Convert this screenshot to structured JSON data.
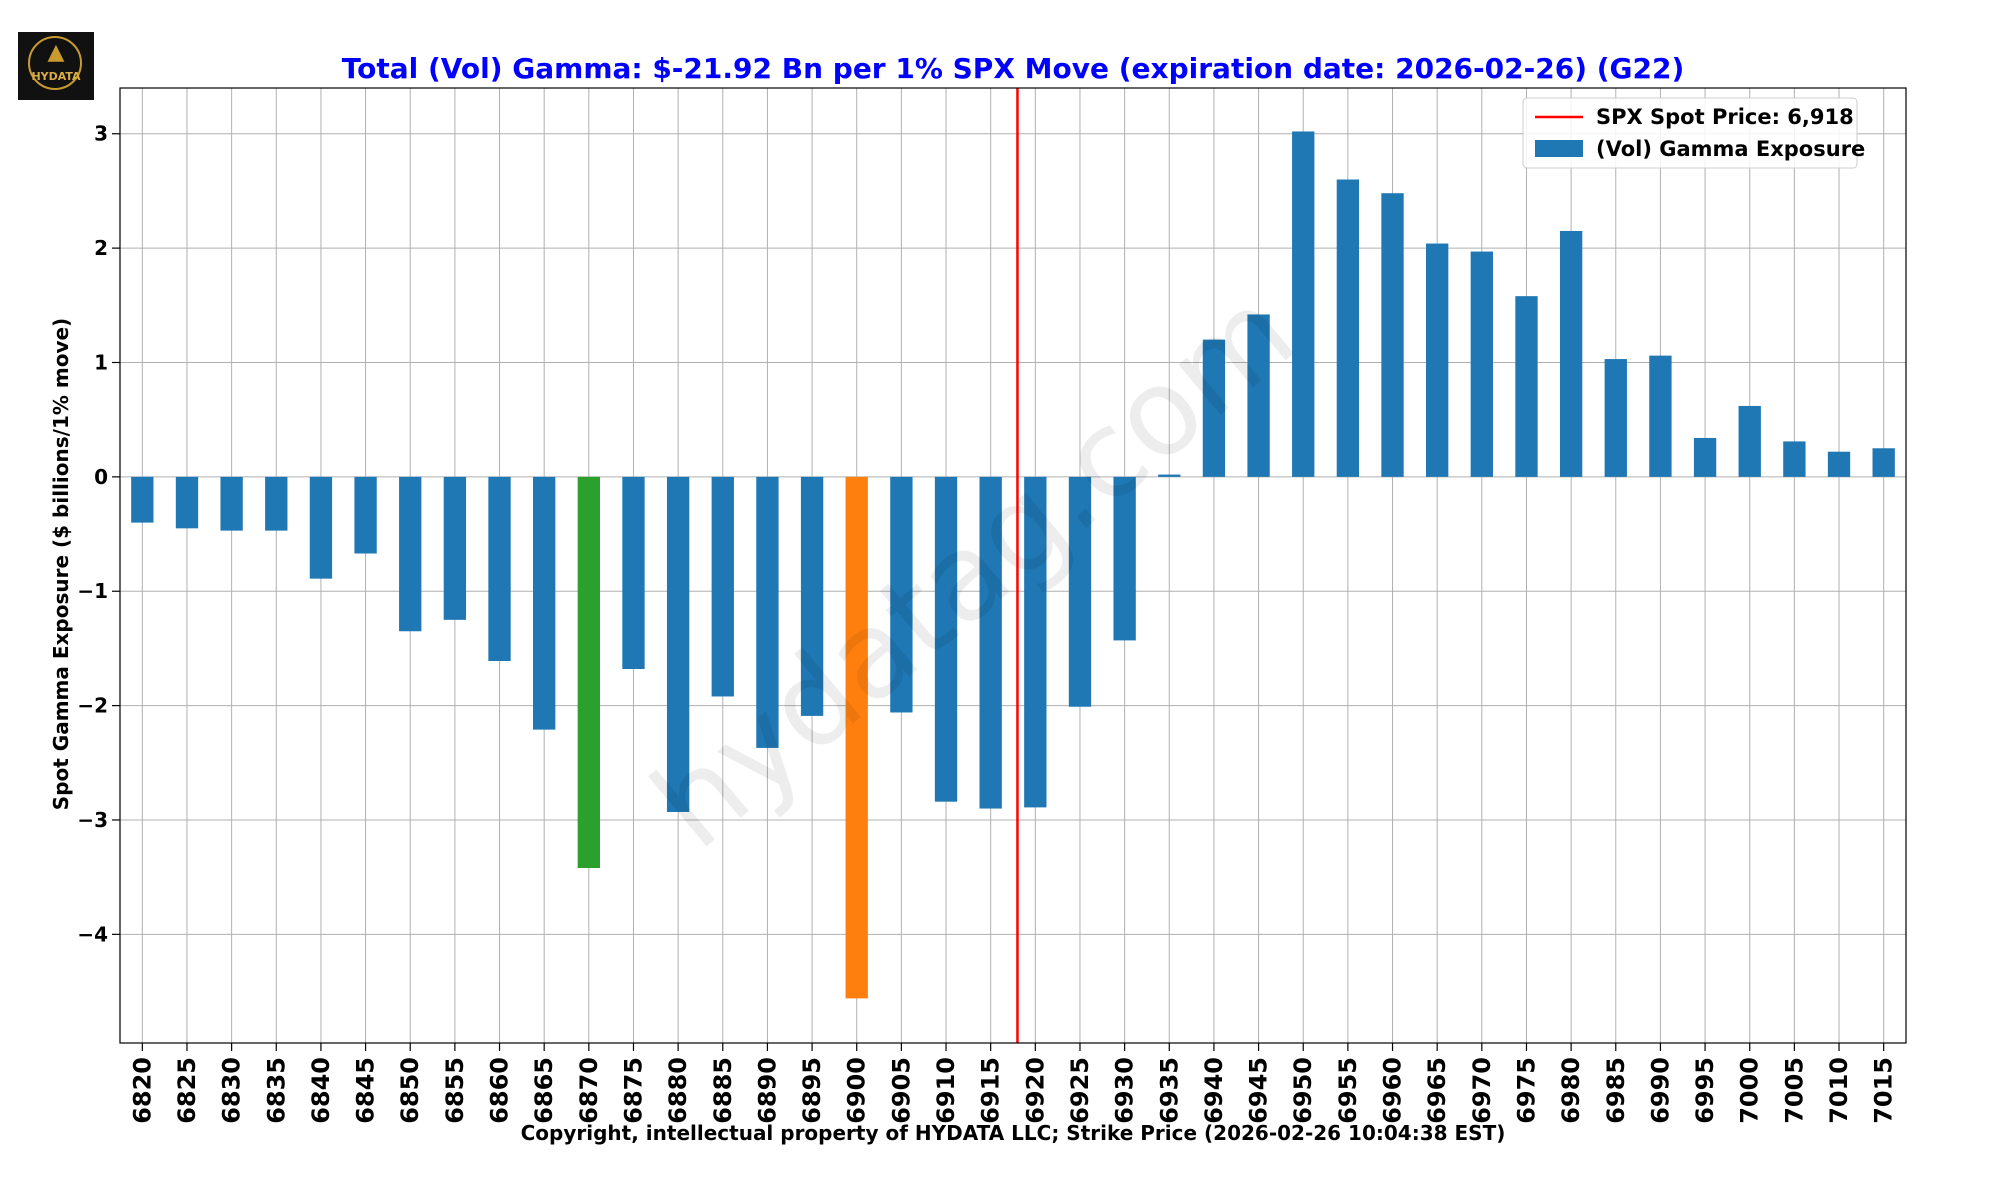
{
  "logo": {
    "text": "HYDATA"
  },
  "watermark": "hydatag.com",
  "colors": {
    "default_bar": "#1f77b4",
    "highlight_green": "#2ca02c",
    "highlight_orange": "#ff7f0e",
    "spot_line": "#ff0000",
    "title": "#0000ff",
    "grid": "#b0b0b0"
  },
  "chart_data": {
    "type": "bar",
    "title": "Total (Vol) Gamma: $-21.92 Bn per 1% SPX Move (expiration date: 2026-02-26) (G22)",
    "xlabel": "Copyright, intellectual property of HYDATA LLC; Strike Price (2026-02-26 10:04:38 EST)",
    "ylabel": "Spot Gamma Exposure ($ billions/1% move)",
    "ylim": [
      -4.95,
      3.4
    ],
    "yticks": [
      3,
      2,
      1,
      0,
      -1,
      -2,
      -3,
      -4
    ],
    "ytick_labels": [
      "3",
      "2",
      "1",
      "0",
      "−1",
      "−2",
      "−3",
      "−4"
    ],
    "grid": true,
    "legend_position": "top-right",
    "categories": [
      "6820",
      "6825",
      "6830",
      "6835",
      "6840",
      "6845",
      "6850",
      "6855",
      "6860",
      "6865",
      "6870",
      "6875",
      "6880",
      "6885",
      "6890",
      "6895",
      "6900",
      "6905",
      "6910",
      "6915",
      "6920",
      "6925",
      "6930",
      "6935",
      "6940",
      "6945",
      "6950",
      "6955",
      "6960",
      "6965",
      "6970",
      "6975",
      "6980",
      "6985",
      "6990",
      "6995",
      "7000",
      "7005",
      "7010",
      "7015"
    ],
    "series": [
      {
        "name": "(Vol) Gamma Exposure",
        "values": [
          -0.4,
          -0.45,
          -0.47,
          -0.47,
          -0.89,
          -0.67,
          -1.35,
          -1.25,
          -1.61,
          -2.21,
          -3.42,
          -1.68,
          -2.93,
          -1.92,
          -2.37,
          -2.09,
          -4.56,
          -2.06,
          -2.84,
          -2.9,
          -2.89,
          -2.01,
          -1.43,
          0.02,
          1.2,
          1.42,
          3.02,
          2.6,
          2.48,
          2.04,
          1.97,
          1.58,
          2.15,
          1.03,
          1.06,
          0.34,
          0.62,
          0.31,
          0.22,
          0.25
        ]
      }
    ],
    "highlights": [
      {
        "category": "6870",
        "color": "#2ca02c"
      },
      {
        "category": "6900",
        "color": "#ff7f0e"
      }
    ],
    "spot_line": {
      "label": "SPX Spot Price: 6,918",
      "x_value": 6918
    }
  }
}
